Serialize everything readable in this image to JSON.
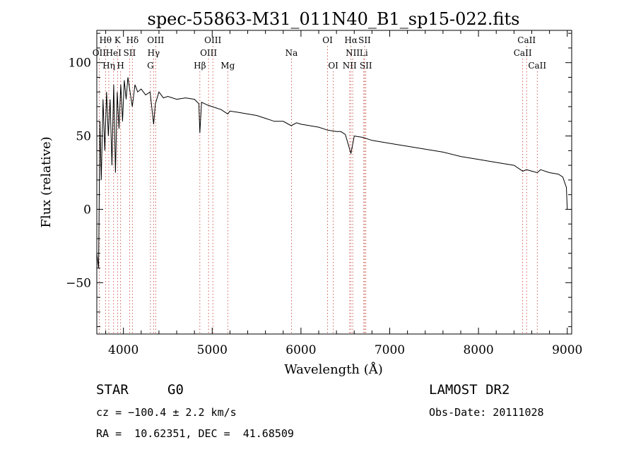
{
  "chart_data": {
    "type": "line",
    "title": "spec-55863-M31_011N40_B1_sp15-022.fits",
    "xlabel": "Wavelength (Å)",
    "ylabel": "Flux (relative)",
    "xlim": [
      3700,
      9050
    ],
    "ylim": [
      -85,
      122
    ],
    "xticks": [
      4000,
      5000,
      6000,
      7000,
      8000,
      9000
    ],
    "xtick_labels": [
      "4000",
      "5000",
      "6000",
      "7000",
      "8000",
      "9000"
    ],
    "yticks": [
      -50,
      0,
      50,
      100
    ],
    "ytick_labels": [
      "−50",
      "0",
      "50",
      "100"
    ],
    "grid": false,
    "series": [
      {
        "name": "spectrum",
        "color": "#000000",
        "x": [
          3700,
          3720,
          3735,
          3750,
          3770,
          3790,
          3810,
          3830,
          3850,
          3870,
          3890,
          3910,
          3930,
          3950,
          3970,
          3990,
          4010,
          4030,
          4050,
          4080,
          4100,
          4130,
          4160,
          4200,
          4250,
          4300,
          4340,
          4360,
          4400,
          4450,
          4500,
          4600,
          4700,
          4800,
          4850,
          4861,
          4880,
          4950,
          5000,
          5100,
          5175,
          5200,
          5300,
          5400,
          5500,
          5600,
          5700,
          5800,
          5890,
          5950,
          6000,
          6100,
          6200,
          6300,
          6400,
          6450,
          6500,
          6563,
          6600,
          6700,
          6800,
          6900,
          7000,
          7200,
          7400,
          7600,
          7800,
          8000,
          8200,
          8400,
          8498,
          8542,
          8600,
          8662,
          8700,
          8800,
          8900,
          8950,
          8990,
          9000
        ],
        "y": [
          -30,
          -40,
          60,
          20,
          75,
          40,
          80,
          50,
          75,
          30,
          85,
          25,
          80,
          55,
          85,
          60,
          88,
          75,
          90,
          78,
          70,
          85,
          80,
          82,
          78,
          80,
          58,
          72,
          80,
          76,
          77,
          75,
          76,
          75,
          72,
          52,
          73,
          71,
          70,
          68,
          65,
          67,
          66,
          65,
          64,
          62,
          60,
          60,
          57,
          59,
          58,
          57,
          56,
          54,
          53,
          53,
          51,
          38,
          50,
          49,
          47,
          46,
          45,
          43,
          41,
          39,
          36,
          34,
          32,
          30,
          26,
          27,
          26,
          25,
          27,
          25,
          24,
          22,
          15,
          0
        ]
      }
    ],
    "lines": [
      {
        "label": "Hθ",
        "x": 3798,
        "row": 0
      },
      {
        "label": "OII",
        "x": 3727,
        "row": 1
      },
      {
        "label": "Hη",
        "x": 3835,
        "row": 2
      },
      {
        "label": "K",
        "x": 3934,
        "row": 0
      },
      {
        "label": "HeI",
        "x": 3889,
        "row": 1
      },
      {
        "label": "H",
        "x": 3968,
        "row": 2
      },
      {
        "label": "SII",
        "x": 4069,
        "row": 1
      },
      {
        "label": "Hδ",
        "x": 4101,
        "row": 0
      },
      {
        "label": "OIII",
        "x": 4363,
        "row": 0
      },
      {
        "label": "Hγ",
        "x": 4340,
        "row": 1
      },
      {
        "label": "G",
        "x": 4304,
        "row": 2
      },
      {
        "label": "Hβ",
        "x": 4861,
        "row": 2
      },
      {
        "label": "OIII",
        "x": 5007,
        "row": 0
      },
      {
        "label": "OIII",
        "x": 4959,
        "row": 1
      },
      {
        "label": "Mg",
        "x": 5175,
        "row": 2
      },
      {
        "label": "Na",
        "x": 5893,
        "row": 1
      },
      {
        "label": "OI",
        "x": 6300,
        "row": 0
      },
      {
        "label": "OI",
        "x": 6364,
        "row": 2
      },
      {
        "label": "Hα",
        "x": 6563,
        "row": 0
      },
      {
        "label": "SII",
        "x": 6717,
        "row": 0
      },
      {
        "label": "NII",
        "x": 6583,
        "row": 1
      },
      {
        "label": "Li",
        "x": 6708,
        "row": 1
      },
      {
        "label": "NII",
        "x": 6548,
        "row": 2
      },
      {
        "label": "SII",
        "x": 6731,
        "row": 2
      },
      {
        "label": "CaII",
        "x": 8542,
        "row": 0
      },
      {
        "label": "CaII",
        "x": 8498,
        "row": 1
      },
      {
        "label": "CaII",
        "x": 8662,
        "row": 2
      }
    ]
  },
  "info": {
    "class": "STAR",
    "subclass": "G0",
    "survey": "LAMOST DR2",
    "cz": "cz = −100.4 ± 2.2 km/s",
    "obs_date": "Obs-Date: 20111028",
    "coords": "RA =  10.62351, DEC =  41.68509"
  }
}
